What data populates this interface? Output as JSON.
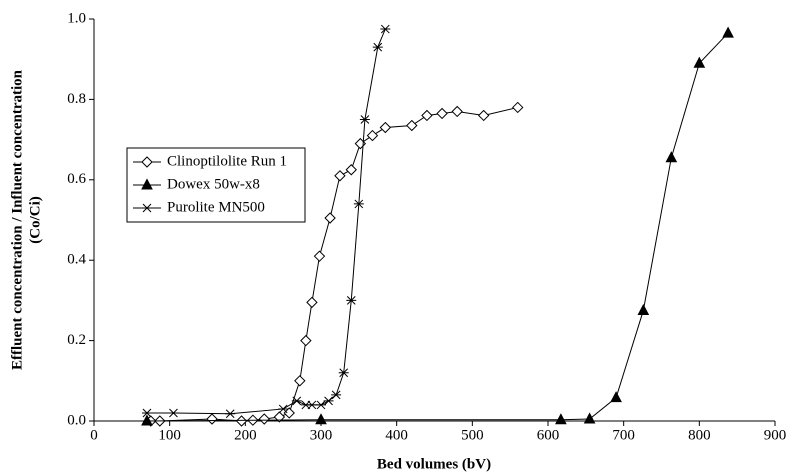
{
  "chart_data": {
    "type": "line",
    "xlabel": "Bed volumes (bV)",
    "ylabel": [
      "Effluent concentration / Influent concentration",
      "(Co/Ci)"
    ],
    "xlim": [
      0,
      900
    ],
    "xticks": [
      0,
      100,
      200,
      300,
      400,
      500,
      600,
      700,
      800,
      900
    ],
    "ylim": [
      0,
      1
    ],
    "yticks": [
      {
        "value": 0,
        "label": "0.0"
      },
      {
        "value": 0.2,
        "label": "0.2"
      },
      {
        "value": 0.4,
        "label": "0.4"
      },
      {
        "value": 0.6,
        "label": "0.6"
      },
      {
        "value": 0.8,
        "label": "0.8"
      },
      {
        "value": 1,
        "label": "1.0"
      }
    ],
    "grid": false,
    "legend": "left",
    "series": [
      {
        "name": "Clinoptilolite Run 1",
        "color": "#000000",
        "marker": "diamond",
        "x": [
          75,
          87,
          156,
          195,
          210,
          225,
          245,
          258,
          272,
          280,
          288,
          298,
          312,
          325,
          340,
          352,
          368,
          385,
          420,
          440,
          460,
          480,
          515,
          560
        ],
        "values": [
          0.0,
          0.0,
          0.005,
          0.0,
          0.002,
          0.005,
          0.01,
          0.02,
          0.1,
          0.2,
          0.295,
          0.41,
          0.505,
          0.61,
          0.625,
          0.69,
          0.71,
          0.73,
          0.735,
          0.76,
          0.765,
          0.77,
          0.76,
          0.78
        ]
      },
      {
        "name": "Dowex 50w-x8",
        "color": "#000000",
        "marker": "triangle",
        "x": [
          70,
          300,
          617,
          655,
          690,
          726,
          763,
          800,
          838
        ],
        "values": [
          0.0,
          0.003,
          0.003,
          0.005,
          0.058,
          0.275,
          0.655,
          0.89,
          0.965
        ]
      },
      {
        "name": "Purolite MN500",
        "color": "#000000",
        "marker": "star",
        "x": [
          70,
          105,
          180,
          250,
          268,
          280,
          288,
          300,
          310,
          320,
          330,
          340,
          350,
          358,
          375,
          385
        ],
        "values": [
          0.02,
          0.02,
          0.018,
          0.03,
          0.05,
          0.04,
          0.04,
          0.04,
          0.05,
          0.065,
          0.12,
          0.3,
          0.54,
          0.75,
          0.93,
          0.975
        ]
      }
    ]
  }
}
